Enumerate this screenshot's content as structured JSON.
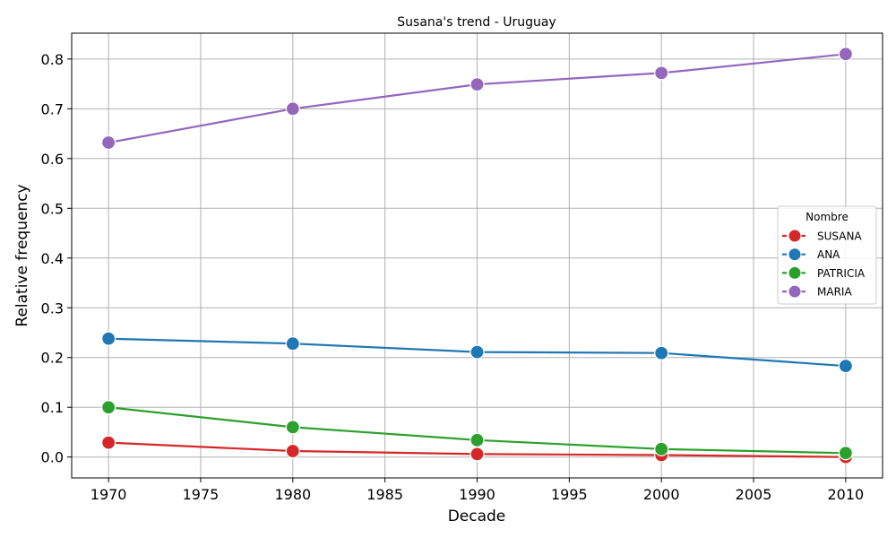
{
  "chart_data": {
    "type": "line",
    "title": "Susana's trend - Uruguay",
    "xlabel": "Decade",
    "ylabel": "Relative frequency",
    "x": [
      1970,
      1980,
      1990,
      2000,
      2010
    ],
    "xlim": [
      1968,
      2012
    ],
    "ylim": [
      -0.042,
      0.852
    ],
    "xticks": [
      1970,
      1975,
      1980,
      1985,
      1990,
      1995,
      2000,
      2005,
      2010
    ],
    "yticks": [
      0.0,
      0.1,
      0.2,
      0.3,
      0.4,
      0.5,
      0.6,
      0.7,
      0.8
    ],
    "ytick_labels": [
      "0.0",
      "0.1",
      "0.2",
      "0.3",
      "0.4",
      "0.5",
      "0.6",
      "0.7",
      "0.8"
    ],
    "grid": true,
    "legend_title": "Nombre",
    "legend_position": "center-right",
    "series": [
      {
        "name": "SUSANA",
        "color": "#d62728",
        "values": [
          0.029,
          0.012,
          0.006,
          0.004,
          0.0
        ]
      },
      {
        "name": "ANA",
        "color": "#1f77b4",
        "values": [
          0.238,
          0.228,
          0.211,
          0.209,
          0.183
        ]
      },
      {
        "name": "PATRICIA",
        "color": "#2ca02c",
        "values": [
          0.1,
          0.06,
          0.034,
          0.016,
          0.008
        ]
      },
      {
        "name": "MARIA",
        "color": "#9467bd",
        "values": [
          0.632,
          0.7,
          0.749,
          0.772,
          0.81
        ]
      }
    ]
  }
}
